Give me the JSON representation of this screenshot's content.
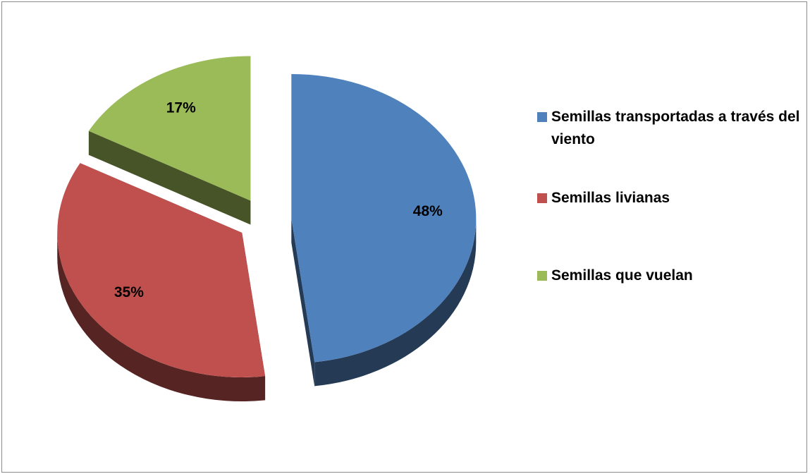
{
  "chart_data": {
    "type": "pie",
    "categories": [
      "Semillas transportadas a través del viento",
      "Semillas livianas",
      "Semillas que vuelan"
    ],
    "values": [
      48,
      35,
      17
    ],
    "value_labels": [
      "48%",
      "35%",
      "17%"
    ],
    "colors": [
      "#4f81bd",
      "#c0504d",
      "#9bbb59"
    ],
    "legend": "right"
  }
}
